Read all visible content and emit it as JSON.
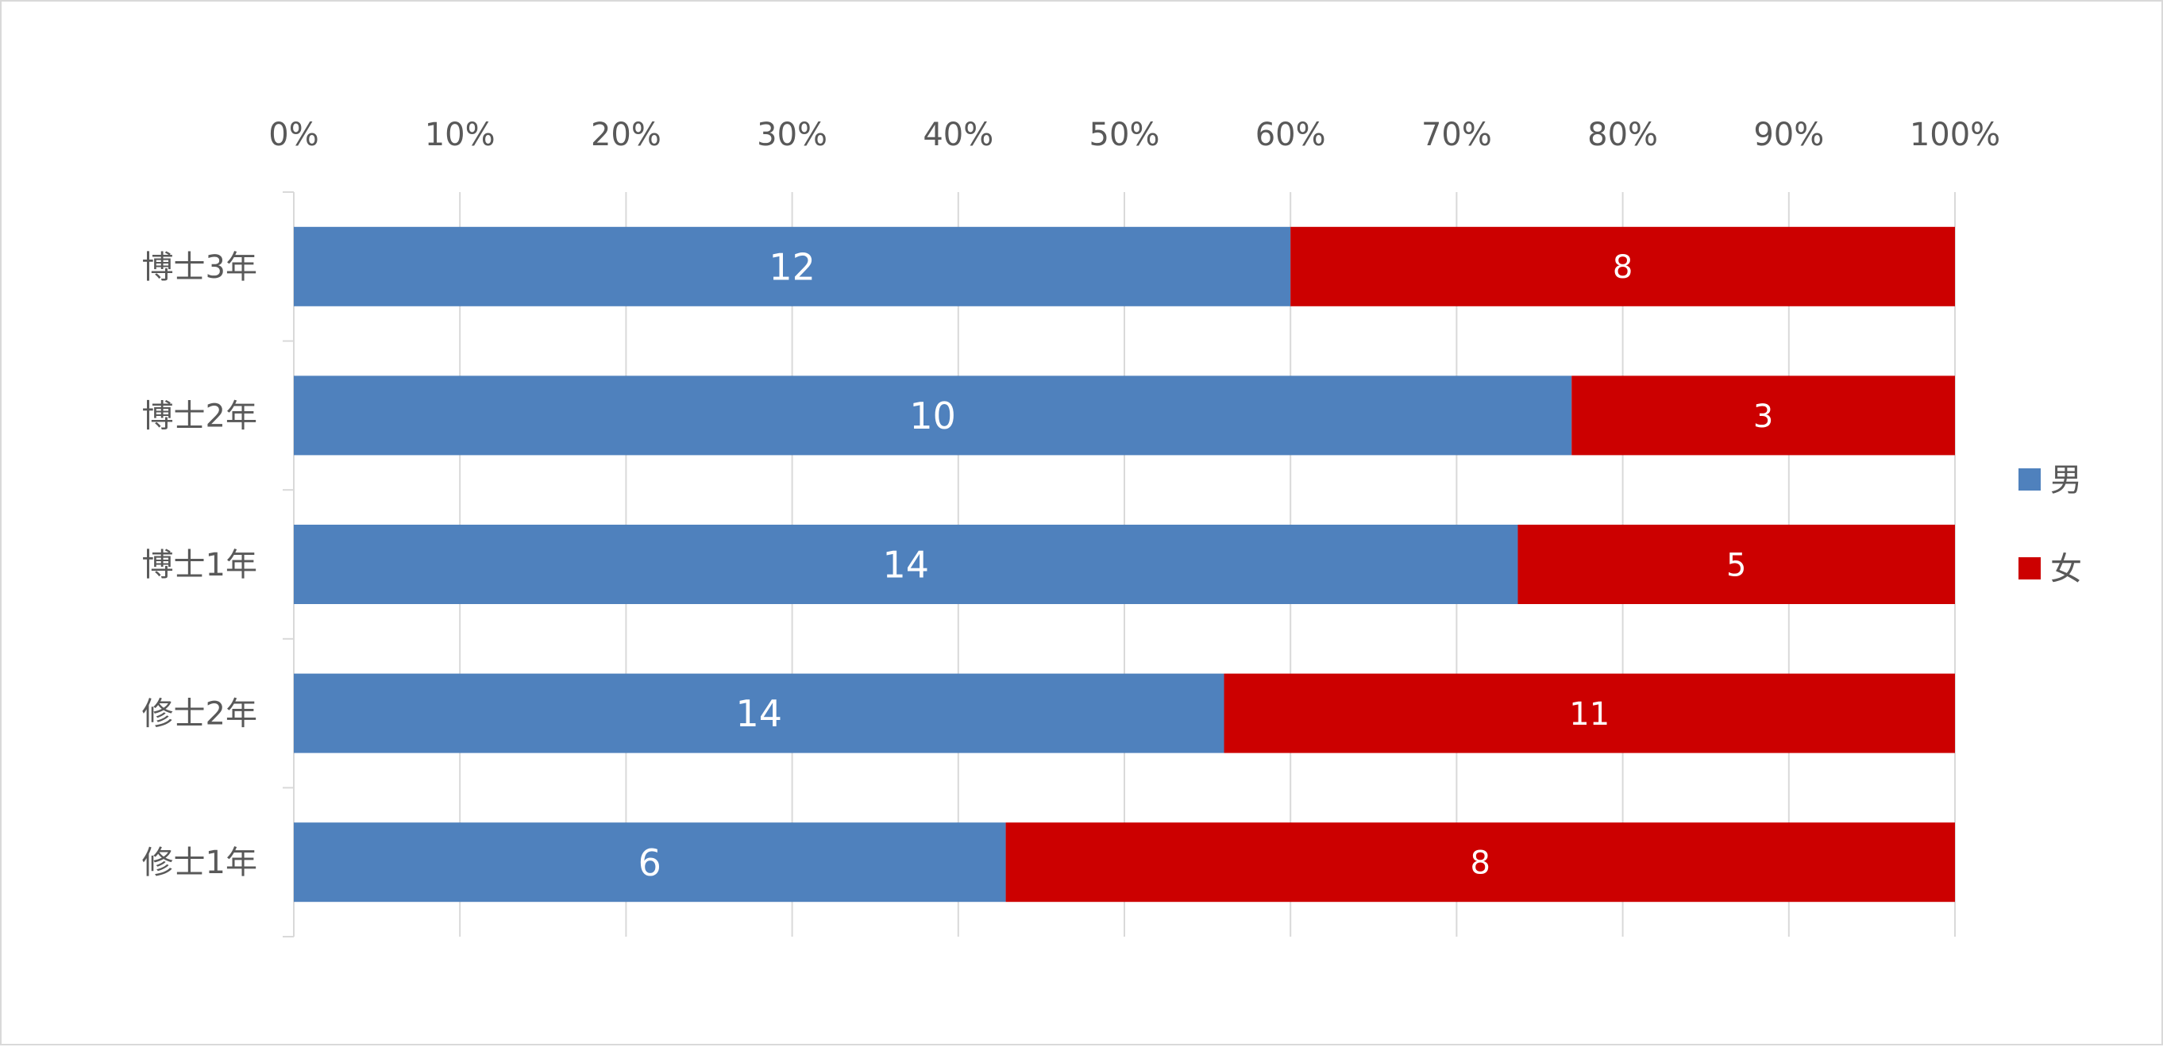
{
  "chart_data": {
    "type": "bar",
    "orientation": "horizontal",
    "stacking": "percent",
    "title": "",
    "xlabel": "",
    "ylabel": "",
    "xlim": [
      0,
      100
    ],
    "x_ticks": [
      "0%",
      "10%",
      "20%",
      "30%",
      "40%",
      "50%",
      "60%",
      "70%",
      "80%",
      "90%",
      "100%"
    ],
    "x_axis_position": "top",
    "grid": true,
    "legend_position": "right",
    "categories": [
      "博士3年",
      "博士2年",
      "博士1年",
      "修士2年",
      "修士1年"
    ],
    "series": [
      {
        "name": "男",
        "values": [
          12,
          10,
          14,
          14,
          6
        ],
        "color": "#4f81bd"
      },
      {
        "name": "女",
        "values": [
          8,
          3,
          5,
          11,
          8
        ],
        "color": "#cc0000"
      }
    ]
  }
}
